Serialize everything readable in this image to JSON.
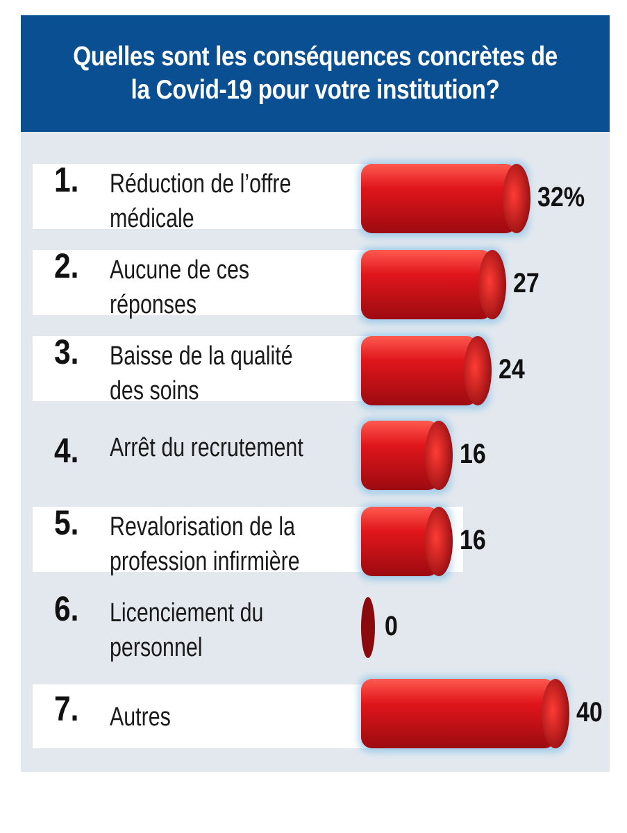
{
  "chart_data": {
    "type": "bar",
    "orientation": "horizontal",
    "title": "Quelles sont les conséquences concrètes de\nla Covid-19 pour votre institution?",
    "categories": [
      {
        "rank": "1.",
        "label": "Réduction de l’offre\nmédicale"
      },
      {
        "rank": "2.",
        "label": "Aucune de ces\nréponses"
      },
      {
        "rank": "3.",
        "label": "Baisse de la qualité\ndes soins"
      },
      {
        "rank": "4.",
        "label": "Arrêt du recrutement"
      },
      {
        "rank": "5.",
        "label": "Revalorisation de la\nprofession infirmière"
      },
      {
        "rank": "6.",
        "label": "Licenciement du\npersonnel"
      },
      {
        "rank": "7.",
        "label": "Autres"
      }
    ],
    "values": [
      32,
      27,
      24,
      16,
      16,
      0,
      40
    ],
    "value_labels": [
      "32%",
      "27",
      "24",
      "16",
      "16",
      "0",
      "40"
    ],
    "unit": "%",
    "colors": {
      "header_bg": "#0b4f93",
      "panel_bg": "#e3e8ee",
      "bar": "#e0161b",
      "bar_dark": "#8a0a0e"
    },
    "grid": false,
    "legend": "none"
  }
}
